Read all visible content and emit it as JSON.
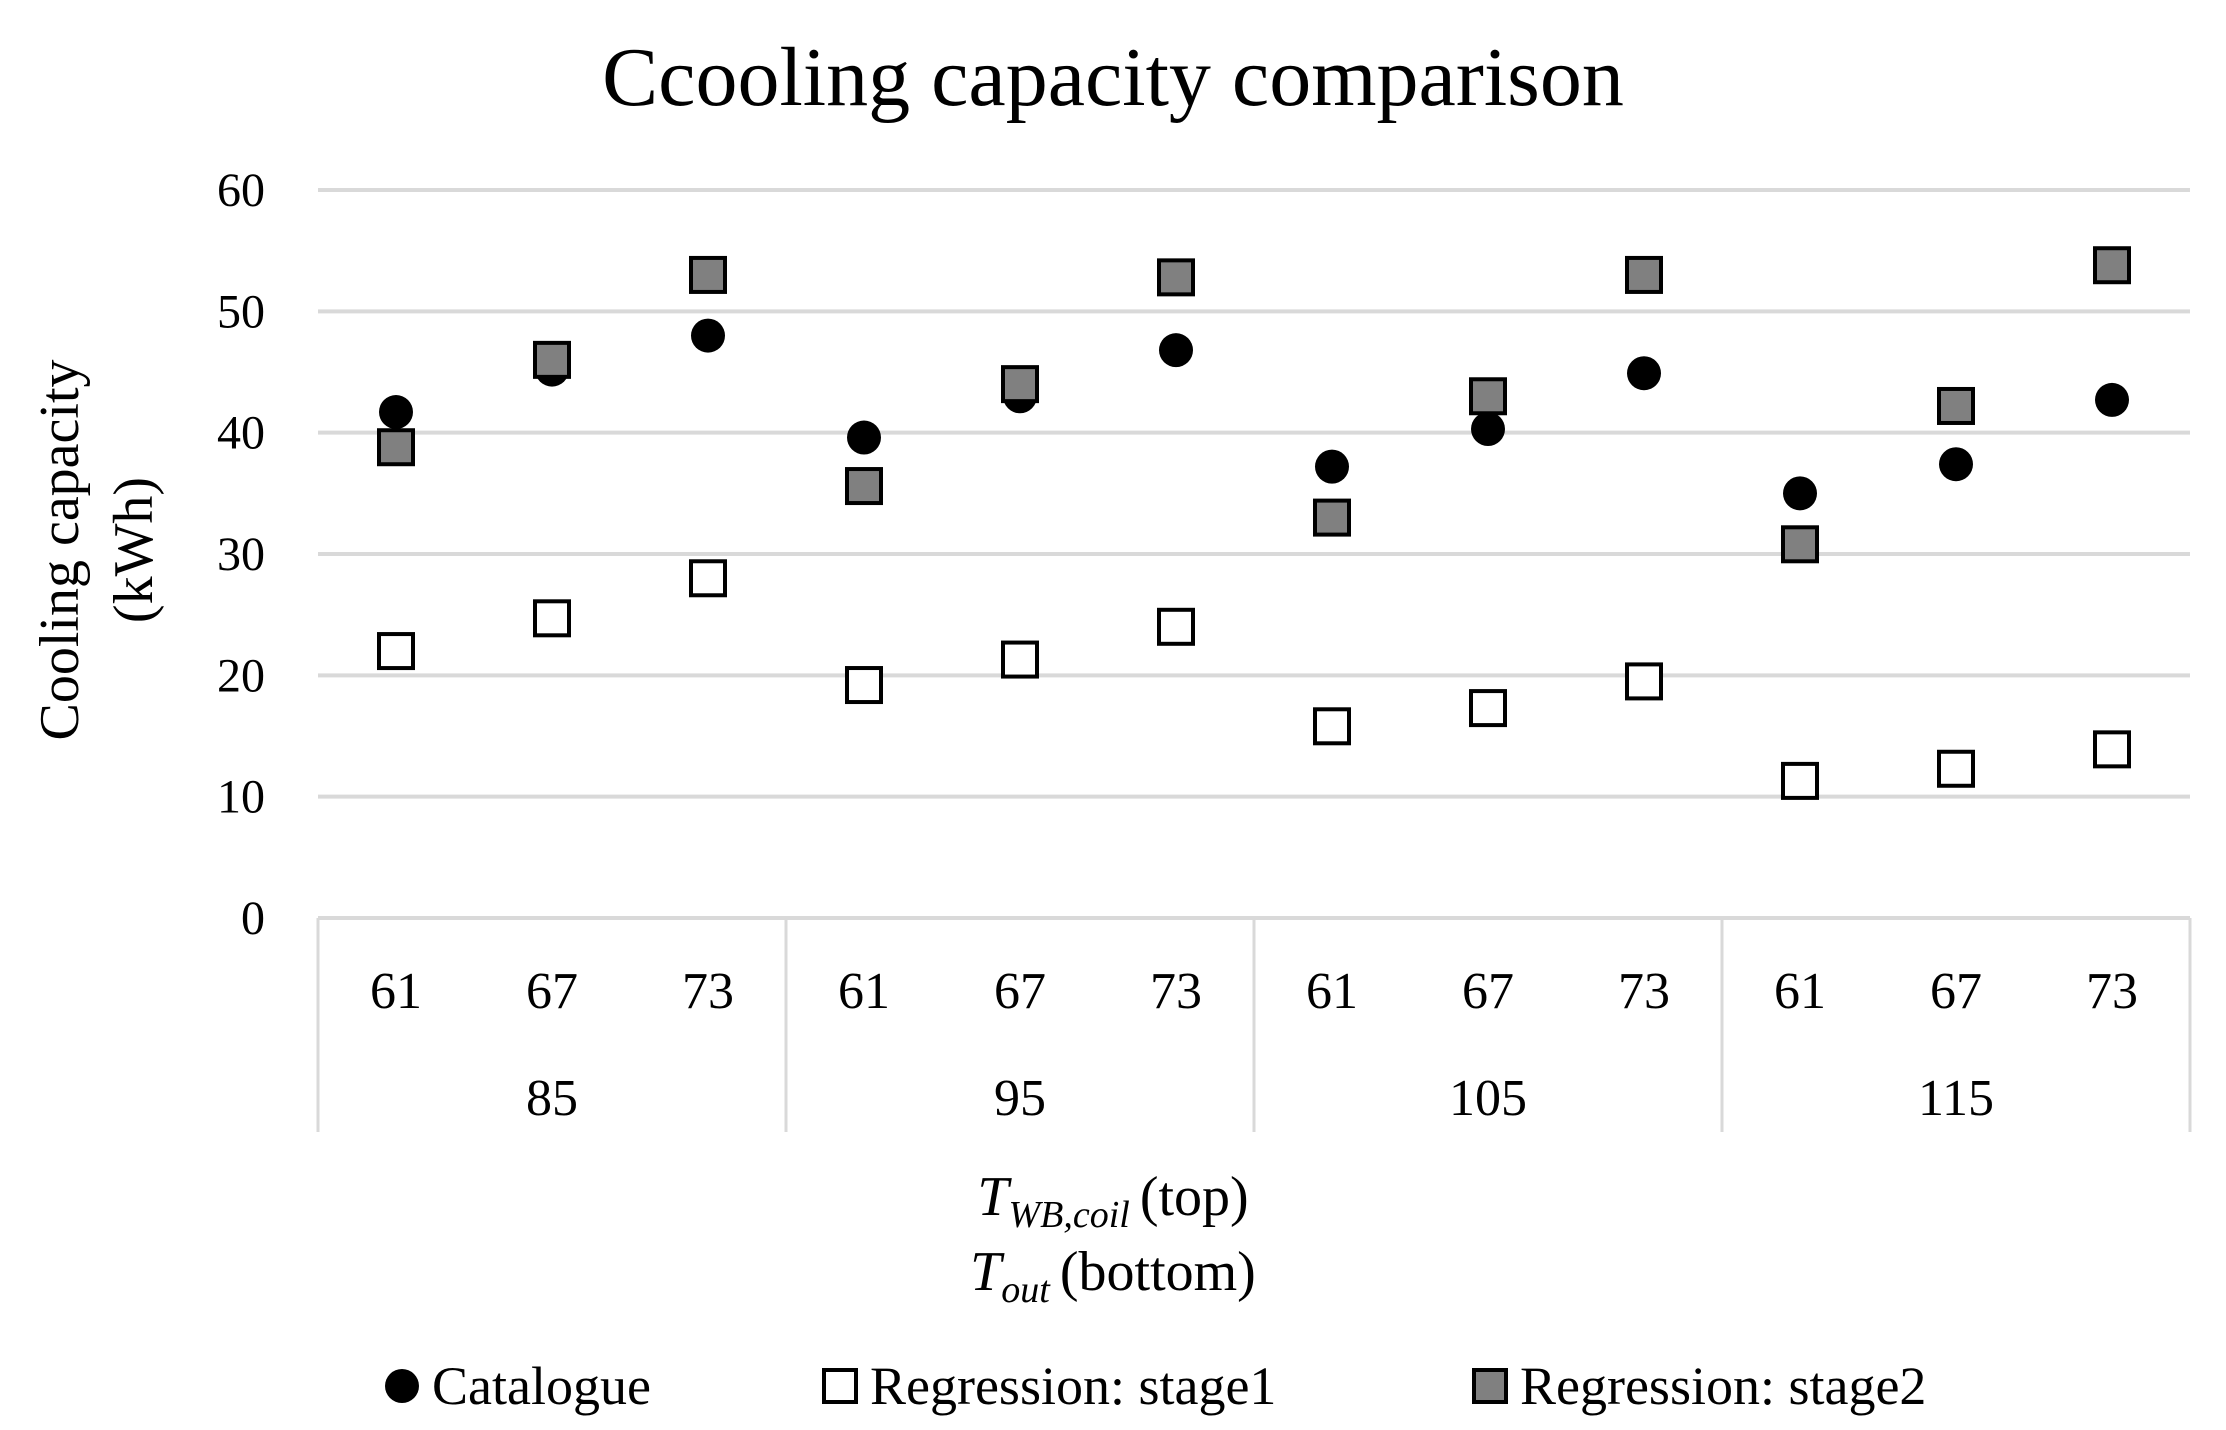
{
  "chart_data": {
    "type": "scatter",
    "title": "Ccooling capacity comparison",
    "ylabel_line1": "Cooling capacity",
    "ylabel_line2": "(kWh)",
    "xlabel": {
      "line1_symbol": "T",
      "line1_subscript": "WB,coil",
      "line1_suffix": "(top)",
      "line2_symbol": "T",
      "line2_subscript": "out",
      "line2_suffix": "(bottom)"
    },
    "ylim": [
      0,
      60
    ],
    "yticks": [
      0,
      10,
      20,
      30,
      40,
      50,
      60
    ],
    "grid": true,
    "legend_position": "bottom",
    "categories": [
      "61",
      "67",
      "73",
      "61",
      "67",
      "73",
      "61",
      "67",
      "73",
      "61",
      "67",
      "73"
    ],
    "groups": [
      {
        "label": "85",
        "count": 3
      },
      {
        "label": "95",
        "count": 3
      },
      {
        "label": "105",
        "count": 3
      },
      {
        "label": "115",
        "count": 3
      }
    ],
    "series": [
      {
        "name": "Catalogue",
        "marker": "circle",
        "fill": "#000000",
        "values": [
          41.7,
          45.2,
          48.0,
          39.6,
          43.0,
          46.8,
          37.2,
          40.3,
          44.9,
          35.0,
          37.4,
          42.7
        ]
      },
      {
        "name": "Regression: stage1",
        "marker": "square",
        "fill": "#ffffff",
        "values": [
          22.0,
          24.7,
          28.0,
          19.2,
          21.3,
          24.0,
          15.8,
          17.3,
          19.5,
          11.3,
          12.3,
          13.9
        ]
      },
      {
        "name": "Regression: stage2",
        "marker": "square",
        "fill": "#808080",
        "values": [
          38.8,
          46.0,
          53.0,
          35.6,
          44.0,
          52.8,
          33.0,
          43.0,
          53.0,
          30.8,
          42.2,
          53.8
        ]
      }
    ]
  }
}
